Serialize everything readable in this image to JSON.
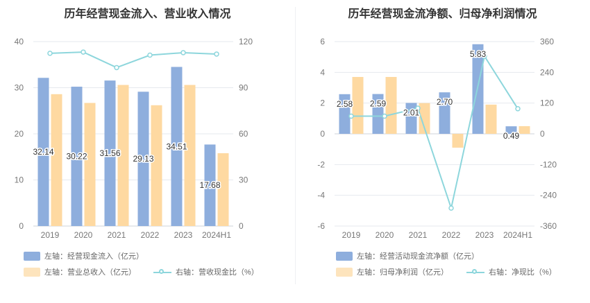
{
  "chart_data": [
    {
      "type": "bar",
      "title": "历年经营现金流入、营业收入情况",
      "categories": [
        "2019",
        "2020",
        "2021",
        "2022",
        "2023",
        "2024H1"
      ],
      "y_left": {
        "min": 0,
        "max": 40,
        "ticks": [
          0,
          10,
          20,
          30,
          40
        ]
      },
      "y_right": {
        "min": 0,
        "max": 120,
        "ticks": [
          0,
          30,
          60,
          90,
          120
        ]
      },
      "series": [
        {
          "name": "左轴：经营现金流入（亿元）",
          "axis": "left",
          "type": "bar",
          "color": "#8eaedd",
          "values": [
            32.14,
            30.22,
            31.56,
            29.13,
            34.51,
            17.68
          ],
          "labels": [
            "32.14",
            "30.22",
            "31.56",
            "29.13",
            "34.51",
            "17.68"
          ]
        },
        {
          "name": "左轴：营业总收入（亿元）",
          "axis": "left",
          "type": "bar",
          "color": "#fed9a1",
          "values": [
            28.6,
            26.7,
            30.6,
            26.2,
            30.6,
            15.8
          ]
        },
        {
          "name": "右轴：营收现金比（%）",
          "axis": "right",
          "type": "line",
          "color": "#8dd6dc",
          "values": [
            112.4,
            113.2,
            103.1,
            111.2,
            112.8,
            111.9
          ]
        }
      ]
    },
    {
      "type": "bar",
      "title": "历年经营现金流净额、归母净利润情况",
      "categories": [
        "2019",
        "2020",
        "2021",
        "2022",
        "2023",
        "2024H1"
      ],
      "y_left": {
        "min": -6,
        "max": 6,
        "ticks": [
          -6,
          -4,
          -2,
          0,
          2,
          4,
          6
        ]
      },
      "y_right": {
        "min": -360,
        "max": 360,
        "ticks": [
          -360,
          -240,
          -120,
          0,
          120,
          240,
          360
        ]
      },
      "series": [
        {
          "name": "左轴：经营活动现金流净额（亿元）",
          "axis": "left",
          "type": "bar",
          "color": "#8eaedd",
          "values": [
            2.58,
            2.59,
            2.01,
            2.7,
            5.83,
            0.49
          ],
          "labels": [
            "2.58",
            "2.59",
            "2.01",
            "2.70",
            "5.83",
            "0.49"
          ]
        },
        {
          "name": "左轴：归母净利润（亿元）",
          "axis": "left",
          "type": "bar",
          "color": "#fed9a1",
          "values": [
            3.7,
            3.7,
            2.0,
            -0.9,
            1.9,
            0.5
          ]
        },
        {
          "name": "右轴：净现比（%）",
          "axis": "right",
          "type": "line",
          "color": "#8dd6dc",
          "values": [
            69,
            69,
            100,
            -290,
            303,
            98
          ]
        }
      ]
    }
  ]
}
